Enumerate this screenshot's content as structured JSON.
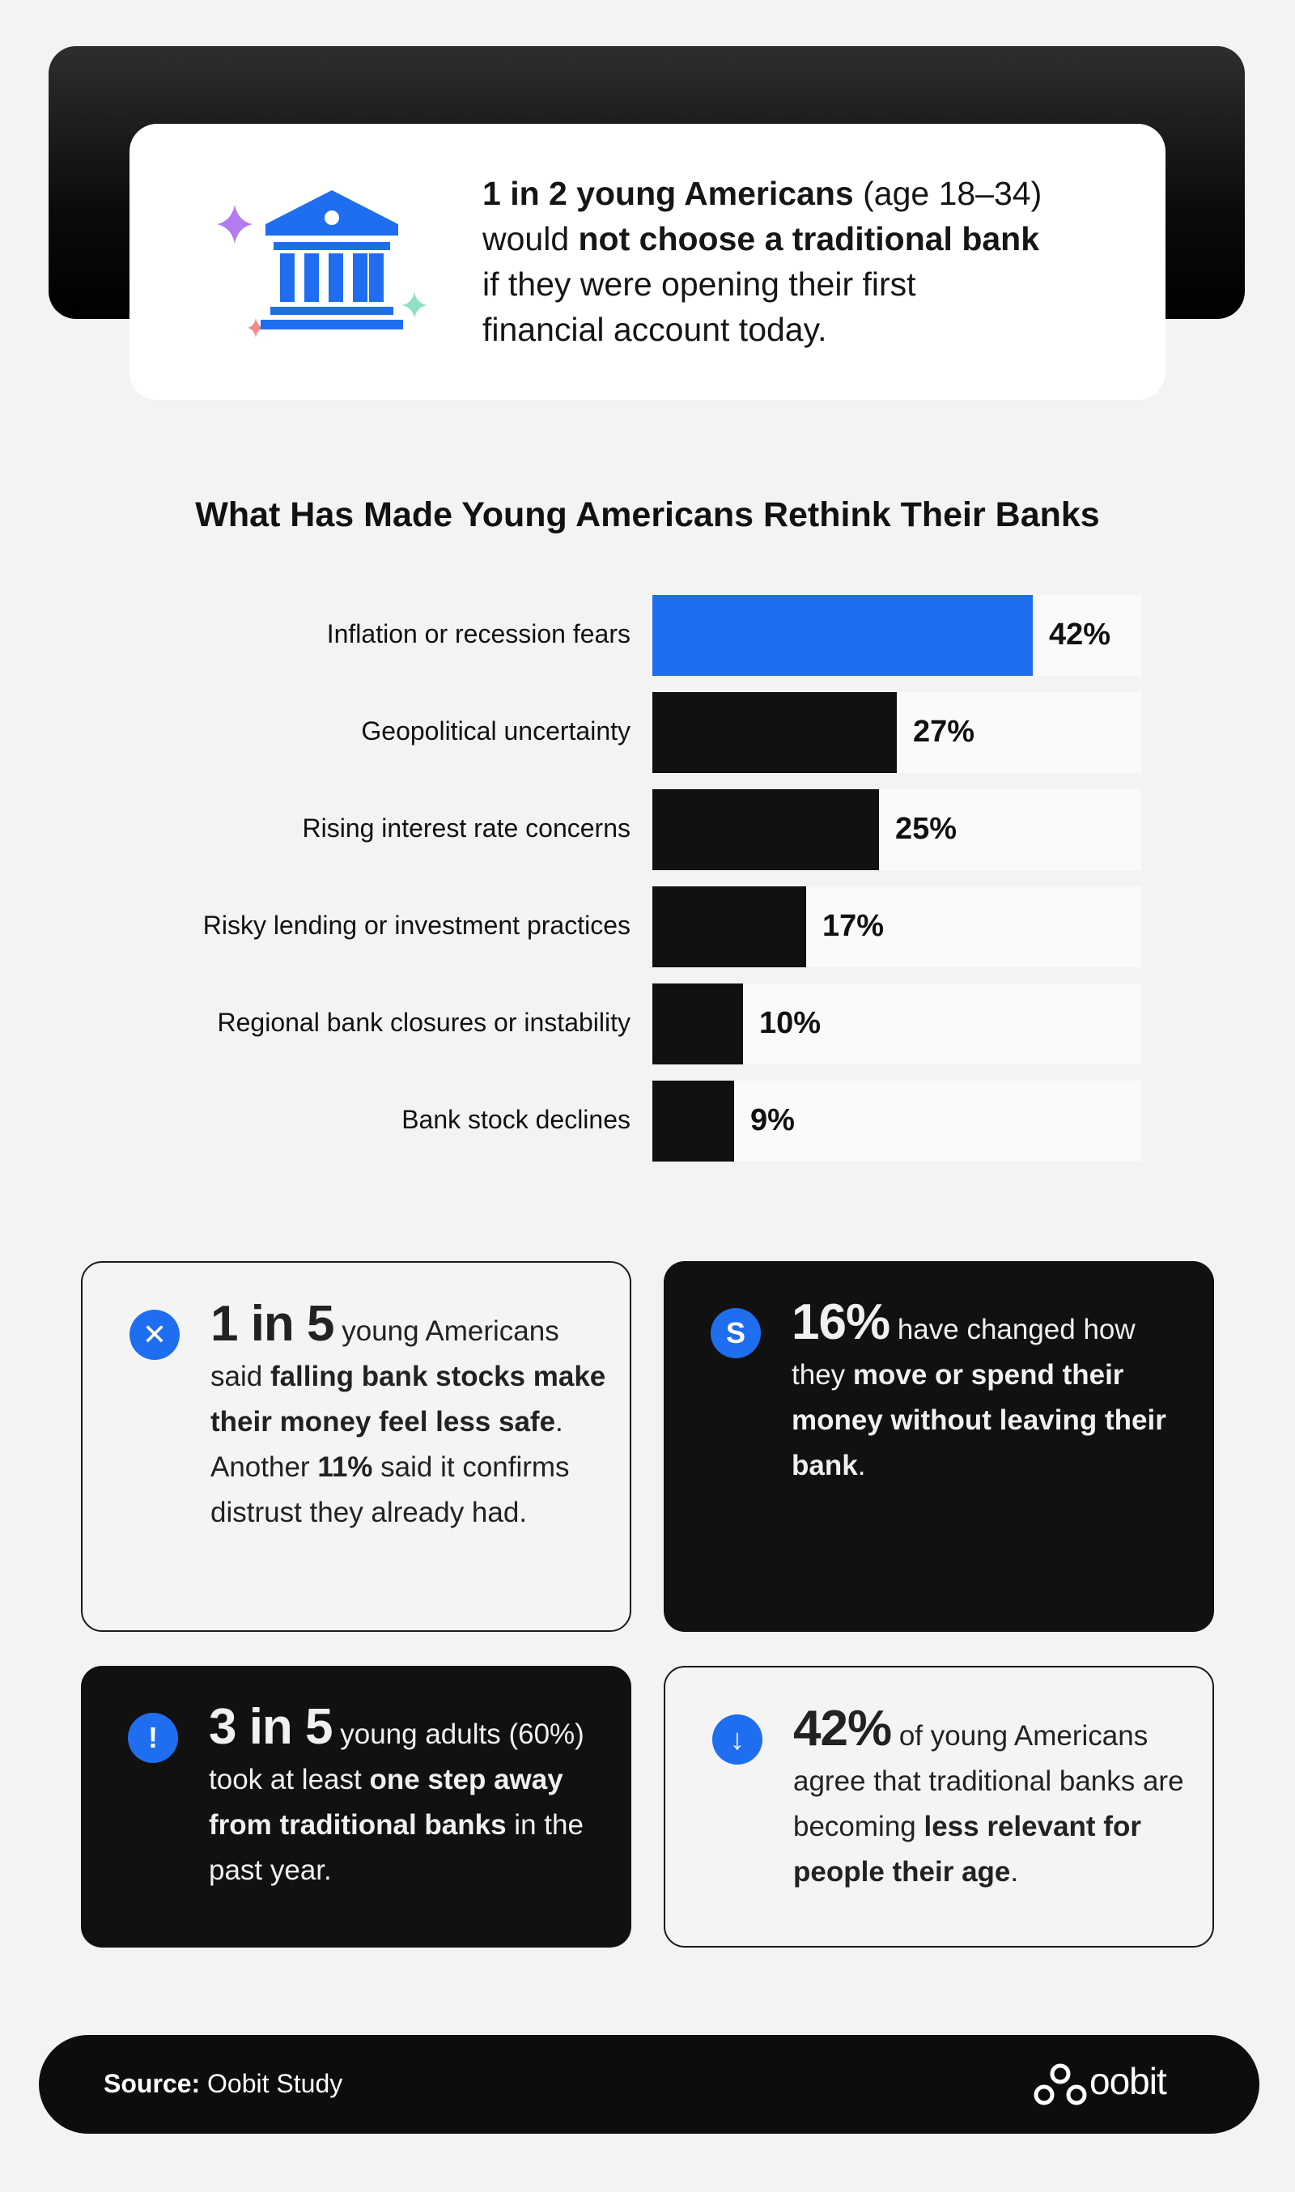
{
  "hero": {
    "icon": "bank-icon",
    "line1_bold": "1 in 2 young Americans",
    "line1_rest": " (age 18–34)",
    "line2_pre": "would ",
    "line2_bold": "not choose a traditional bank",
    "line3": "if they were opening their first",
    "line4": "financial account today."
  },
  "chart_data": {
    "type": "bar",
    "orientation": "horizontal",
    "title": "What Has Made Young Americans Rethink Their Banks",
    "categories": [
      "Inflation or recession fears",
      "Geopolitical uncertainty",
      "Rising interest rate concerns",
      "Risky lending or investment practices",
      "Regional bank closures or instability",
      "Bank stock declines"
    ],
    "values": [
      42,
      27,
      25,
      17,
      10,
      9
    ],
    "value_labels": [
      "42%",
      "27%",
      "25%",
      "17%",
      "10%",
      "9%"
    ],
    "xlim": [
      0,
      54
    ],
    "highlight_index": 0,
    "colors": {
      "highlight": "#1f6ef0",
      "bar": "#111111",
      "track": "#fafafa"
    }
  },
  "cards": {
    "c1": {
      "icon": "close-circle-icon",
      "icon_glyph": "✕",
      "big": "1 in 5",
      "t1": " young Americans said ",
      "b1": "falling bank stocks make their money feel less safe",
      "t2": ". Another ",
      "b2": "11%",
      "t3": " said it confirms distrust they already had."
    },
    "c2": {
      "icon": "dollar-circle-icon",
      "icon_glyph": "S",
      "big": "16%",
      "t1": " have changed how they ",
      "b1": "move or spend their money without leaving their bank",
      "t2": "."
    },
    "c3": {
      "icon": "exclamation-circle-icon",
      "icon_glyph": "!",
      "big": "3 in 5",
      "t1": " young adults (60%) took at least ",
      "b1": "one step away from traditional banks",
      "t2": " in the past year."
    },
    "c4": {
      "icon": "arrow-down-circle-icon",
      "icon_glyph": "↓",
      "big": "42%",
      "t1": " of young Americans agree that traditional banks are becoming ",
      "b1": "less relevant for people their age",
      "t2": "."
    }
  },
  "footer": {
    "source_label": "Source:",
    "source_value": " Oobit Study",
    "logo_text": "oobit"
  },
  "colors": {
    "accent": "#1f6ef0",
    "dark": "#111111",
    "background": "#f3f3f3"
  }
}
